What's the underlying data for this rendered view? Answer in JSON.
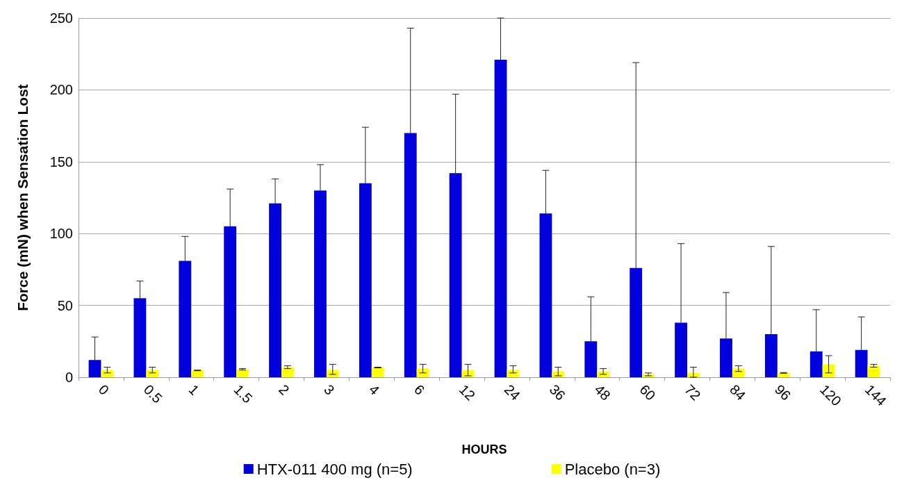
{
  "chart_data": {
    "type": "bar",
    "xlabel": "HOURS",
    "ylabel": "Force (mN) when Sensation Lost",
    "categories": [
      "0",
      "0.5",
      "1",
      "1.5",
      "2",
      "3",
      "4",
      "6",
      "12",
      "24",
      "36",
      "48",
      "60",
      "72",
      "84",
      "96",
      "120",
      "144"
    ],
    "series": [
      {
        "name": "HTX-011 400 mg (n=5)",
        "color": "#0000dd",
        "values": [
          12,
          55,
          81,
          105,
          121,
          130,
          135,
          170,
          142,
          221,
          114,
          25,
          76,
          38,
          27,
          30,
          18,
          19
        ],
        "errors": [
          [
            12,
            28
          ],
          [
            55,
            67
          ],
          [
            81,
            98
          ],
          [
            105,
            131
          ],
          [
            121,
            138
          ],
          [
            130,
            148
          ],
          [
            135,
            174
          ],
          [
            170,
            243
          ],
          [
            142,
            197
          ],
          [
            221,
            250
          ],
          [
            114,
            144
          ],
          [
            25,
            56
          ],
          [
            76,
            219
          ],
          [
            38,
            93
          ],
          [
            27,
            59
          ],
          [
            30,
            91
          ],
          [
            18,
            47
          ],
          [
            19,
            42
          ]
        ]
      },
      {
        "name": "Placebo (n=3)",
        "color": "#ffff00",
        "values": [
          5,
          5,
          5,
          5.5,
          7,
          5,
          7,
          6,
          5,
          5,
          4,
          4,
          2,
          3,
          6,
          3,
          9,
          8
        ],
        "errors": [
          [
            3,
            7
          ],
          [
            3,
            7
          ],
          [
            4.5,
            5
          ],
          [
            5,
            6
          ],
          [
            6,
            8
          ],
          [
            2,
            9
          ],
          [
            6.5,
            7
          ],
          [
            3,
            9
          ],
          [
            1,
            9
          ],
          [
            3,
            8
          ],
          [
            1,
            7
          ],
          [
            2,
            6
          ],
          [
            1,
            3
          ],
          [
            0,
            7
          ],
          [
            4,
            8
          ],
          [
            2.7,
            3.3
          ],
          [
            3,
            15
          ],
          [
            7,
            9
          ]
        ]
      }
    ],
    "ylim": [
      0,
      250
    ],
    "yticks": [
      0,
      50,
      100,
      150,
      200,
      250
    ],
    "grid": "y",
    "legend": "bottom"
  }
}
